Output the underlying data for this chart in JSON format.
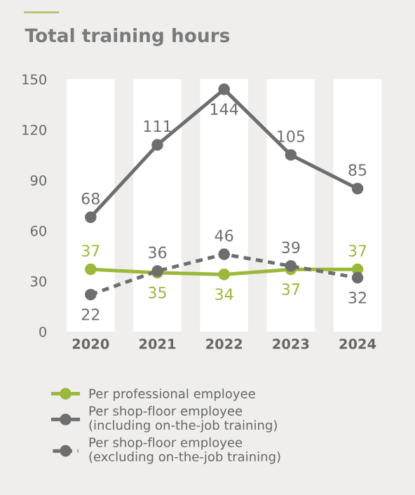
{
  "chart_data": {
    "type": "line",
    "title": "Total training hours",
    "categories": [
      "2020",
      "2021",
      "2022",
      "2023",
      "2024"
    ],
    "series": [
      {
        "name": "Per professional employee",
        "color": "#9bb83a",
        "values": [
          37,
          35,
          34,
          37,
          37
        ],
        "line_style": "solid"
      },
      {
        "name": "Per shop-floor employee\n(including on-the-job training)",
        "color": "#6e6e6e",
        "values": [
          68,
          111,
          144,
          105,
          85
        ],
        "line_style": "solid"
      },
      {
        "name": "Per shop-floor employee\n(excluding on-the-job training)",
        "color": "#6e6e6e",
        "values": [
          22,
          36,
          46,
          39,
          32
        ],
        "line_style": "dashed"
      }
    ],
    "ylim": [
      0,
      150
    ],
    "yticks": [
      0,
      30,
      60,
      90,
      120,
      150
    ],
    "grid": "x",
    "legend": "bottom",
    "marker": "circle",
    "data_labels": true
  }
}
